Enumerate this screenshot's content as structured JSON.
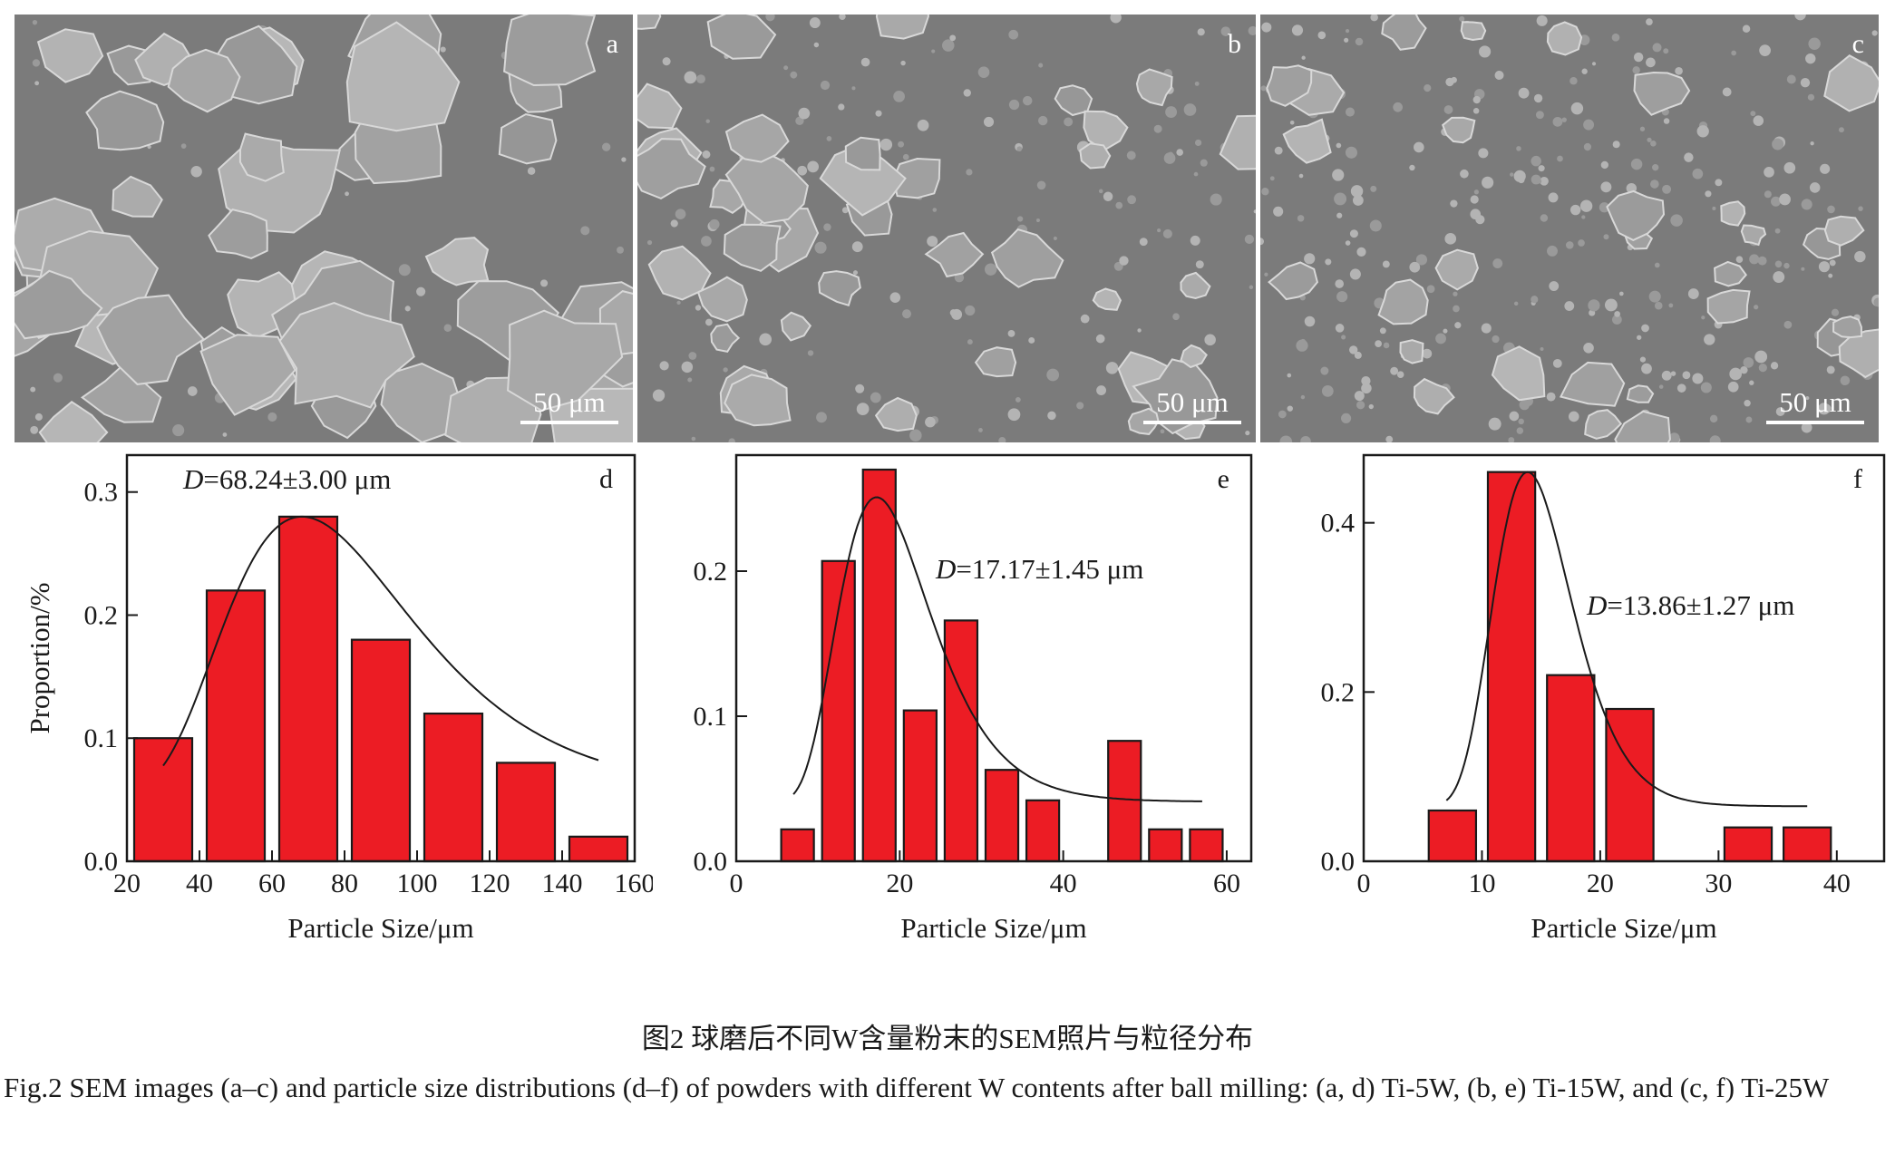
{
  "sem_panels": [
    {
      "label": "a",
      "scale_text": "50 μm",
      "particles": "large"
    },
    {
      "label": "b",
      "scale_text": "50 μm",
      "particles": "medium"
    },
    {
      "label": "c",
      "scale_text": "50 μm",
      "particles": "small"
    }
  ],
  "chart_data": [
    {
      "type": "bar",
      "panel_label": "d",
      "annotation_var": "D",
      "annotation_value": "=68.24±3.00 μm",
      "xlabel": "Particle Size/μm",
      "ylabel": "Proportion/%",
      "xlim": [
        20,
        160
      ],
      "ylim": [
        0,
        0.33
      ],
      "xticks": [
        20,
        40,
        60,
        80,
        100,
        120,
        140,
        160
      ],
      "yticks": [
        0.0,
        0.1,
        0.2,
        0.3
      ],
      "ytick_labels": [
        "0.0",
        "0.1",
        "0.2",
        "0.3"
      ],
      "bars": [
        {
          "x": 30,
          "value": 0.1
        },
        {
          "x": 50,
          "value": 0.22
        },
        {
          "x": 70,
          "value": 0.28
        },
        {
          "x": 90,
          "value": 0.18
        },
        {
          "x": 110,
          "value": 0.12
        },
        {
          "x": 130,
          "value": 0.08
        },
        {
          "x": 150,
          "value": 0.02
        }
      ],
      "bar_width": 16,
      "fit": {
        "type": "lognormal",
        "center": 68.24,
        "sigma": 0.38,
        "amplitude": 0.224,
        "offset": 0.056,
        "range": [
          30,
          150
        ]
      }
    },
    {
      "type": "bar",
      "panel_label": "e",
      "annotation_var": "D",
      "annotation_value": "=17.17±1.45 μm",
      "xlabel": "Particle Size/μm",
      "ylabel": "",
      "xlim": [
        0,
        63
      ],
      "ylim": [
        0,
        0.28
      ],
      "xticks": [
        0,
        20,
        40,
        60
      ],
      "yticks": [
        0.0,
        0.1,
        0.2
      ],
      "ytick_labels": [
        "0.0",
        "0.1",
        "0.2"
      ],
      "bars": [
        {
          "x": 7.5,
          "value": 0.022
        },
        {
          "x": 12.5,
          "value": 0.207
        },
        {
          "x": 17.5,
          "value": 0.27
        },
        {
          "x": 22.5,
          "value": 0.104
        },
        {
          "x": 27.5,
          "value": 0.166
        },
        {
          "x": 32.5,
          "value": 0.063
        },
        {
          "x": 37.5,
          "value": 0.042
        },
        {
          "x": 47.5,
          "value": 0.083
        },
        {
          "x": 52.5,
          "value": 0.022
        },
        {
          "x": 57.5,
          "value": 0.022
        }
      ],
      "bar_width": 4,
      "fit": {
        "type": "lognormal",
        "center": 17.17,
        "sigma": 0.33,
        "amplitude": 0.21,
        "offset": 0.041,
        "range": [
          7,
          57
        ]
      }
    },
    {
      "type": "bar",
      "panel_label": "f",
      "annotation_var": "D",
      "annotation_value": "=13.86±1.27 μm",
      "xlabel": "Particle Size/μm",
      "ylabel": "",
      "xlim": [
        0,
        44
      ],
      "ylim": [
        0,
        0.48
      ],
      "xticks": [
        0,
        10,
        20,
        30,
        40
      ],
      "yticks": [
        0.0,
        0.2,
        0.4
      ],
      "ytick_labels": [
        "0.0",
        "0.2",
        "0.4"
      ],
      "bars": [
        {
          "x": 7.5,
          "value": 0.06
        },
        {
          "x": 12.5,
          "value": 0.46
        },
        {
          "x": 17.5,
          "value": 0.22
        },
        {
          "x": 22.5,
          "value": 0.18
        },
        {
          "x": 32.5,
          "value": 0.04
        },
        {
          "x": 37.5,
          "value": 0.04
        }
      ],
      "bar_width": 4,
      "fit": {
        "type": "lognormal",
        "center": 13.86,
        "sigma": 0.24,
        "amplitude": 0.395,
        "offset": 0.065,
        "range": [
          7,
          37.5
        ]
      }
    }
  ],
  "colors": {
    "bar_fill": "#ec1c24",
    "bar_edge": "#1a1a1a",
    "axis": "#1a1a1a",
    "sem_background": "#7b7b7b"
  },
  "caption": {
    "chinese": "图2 球磨后不同W含量粉末的SEM照片与粒径分布",
    "english": "Fig.2 SEM images (a–c) and particle size distributions (d–f) of powders with different W contents after ball milling: (a, d) Ti-5W, (b, e) Ti-15W, and (c, f) Ti-25W"
  }
}
